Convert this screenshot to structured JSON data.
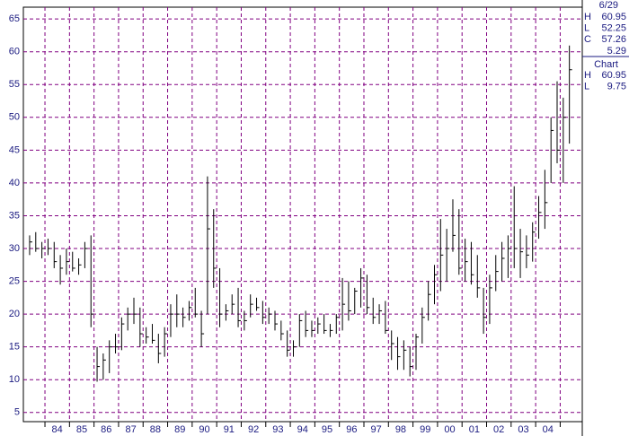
{
  "chart_data": {
    "type": "ohlc",
    "x": [
      1983.375,
      1983.625,
      1983.875,
      1984.125,
      1984.375,
      1984.625,
      1984.875,
      1985.125,
      1985.375,
      1985.625,
      1985.875,
      1986.125,
      1986.375,
      1986.625,
      1986.875,
      1987.125,
      1987.375,
      1987.625,
      1987.875,
      1988.125,
      1988.375,
      1988.625,
      1988.875,
      1989.125,
      1989.375,
      1989.625,
      1989.875,
      1990.125,
      1990.375,
      1990.625,
      1990.875,
      1991.125,
      1991.375,
      1991.625,
      1991.875,
      1992.125,
      1992.375,
      1992.625,
      1992.875,
      1993.125,
      1993.375,
      1993.625,
      1993.875,
      1994.125,
      1994.375,
      1994.625,
      1994.875,
      1995.125,
      1995.375,
      1995.625,
      1995.875,
      1996.125,
      1996.375,
      1996.625,
      1996.875,
      1997.125,
      1997.375,
      1997.625,
      1997.875,
      1998.125,
      1998.375,
      1998.625,
      1998.875,
      1999.125,
      1999.375,
      1999.625,
      1999.875,
      2000.125,
      2000.375,
      2000.625,
      2000.875,
      2001.125,
      2001.375,
      2001.625,
      2001.875,
      2002.125,
      2002.375,
      2002.625,
      2002.875,
      2003.125,
      2003.375,
      2003.625,
      2003.875,
      2004.125,
      2004.375,
      2004.625,
      2004.875,
      2005.125,
      2005.375
    ],
    "high": [
      32,
      32.5,
      31,
      31.5,
      31,
      29,
      30,
      29.5,
      28.5,
      31,
      32,
      15,
      14,
      16,
      17,
      19.5,
      21,
      22.5,
      21,
      18,
      18.5,
      17,
      18,
      21.5,
      23,
      21,
      22,
      24,
      20.5,
      41,
      36,
      27,
      21.5,
      23,
      24,
      20.5,
      23,
      22.5,
      22,
      21,
      20.5,
      19,
      17.5,
      16,
      20,
      20.5,
      19,
      19.5,
      20,
      18.5,
      20,
      25.5,
      25,
      24,
      27,
      26,
      22.5,
      21.5,
      22,
      17.5,
      16.5,
      16,
      15,
      17,
      21,
      25,
      27.5,
      34.5,
      33,
      37.5,
      36,
      31.5,
      31,
      29,
      24,
      26,
      29,
      31,
      32,
      39.5,
      33,
      32,
      34,
      38,
      42,
      50,
      55.5,
      53,
      60.95
    ],
    "low": [
      29,
      29.5,
      28.5,
      29,
      27,
      24.5,
      26,
      26.5,
      26,
      27,
      18,
      9.7,
      10,
      11,
      14,
      14.5,
      17.5,
      18.5,
      15,
      15.5,
      15.5,
      12.5,
      13.5,
      16.5,
      18,
      18,
      19,
      19.5,
      15,
      20,
      24,
      18,
      19,
      20,
      18,
      17.5,
      19.5,
      20.5,
      18.5,
      18.5,
      17.5,
      16,
      13.5,
      13.5,
      15,
      16.5,
      16.5,
      17,
      17,
      16.5,
      17,
      17.5,
      19,
      20,
      21,
      20,
      18.5,
      18.5,
      17,
      13,
      11.5,
      11.5,
      10.5,
      11.5,
      15.5,
      19,
      21.5,
      23.5,
      25,
      29.5,
      26,
      25,
      24.5,
      22.5,
      17,
      18.5,
      23.5,
      25,
      25.5,
      27,
      25.5,
      27,
      28,
      31.5,
      33,
      40,
      43,
      40,
      46
    ],
    "close": [
      31,
      30,
      30,
      30,
      28,
      27,
      28,
      27,
      27.5,
      30,
      20,
      12,
      13,
      15,
      15,
      18.5,
      20,
      20,
      17,
      16.5,
      16,
      14,
      17,
      20,
      20,
      19.5,
      21,
      20,
      17,
      33,
      27,
      20,
      20.5,
      21.5,
      19,
      19,
      21.5,
      21,
      19.5,
      20,
      18.5,
      17,
      14.5,
      15,
      19,
      17.5,
      17.5,
      18.5,
      17.5,
      17.5,
      19.5,
      21.5,
      20.5,
      23.5,
      25.5,
      21,
      19.5,
      20.5,
      17.5,
      15.5,
      13.5,
      14.5,
      12,
      16.5,
      19.5,
      23,
      26,
      29,
      30,
      32,
      27,
      28,
      26,
      24,
      19.5,
      24,
      26.5,
      28.5,
      30,
      30,
      29.5,
      29,
      32.5,
      35.5,
      37,
      48,
      45,
      50,
      57.26
    ],
    "xlim": [
      1983.12,
      2005.9
    ],
    "ylim": [
      3.6,
      66.8
    ],
    "yticks": [
      5,
      10,
      15,
      20,
      25,
      30,
      35,
      40,
      45,
      50,
      55,
      60,
      65
    ],
    "xgrid": [
      1984,
      1985,
      1986,
      1987,
      1988,
      1989,
      1990,
      1991,
      1992,
      1993,
      1994,
      1995,
      1996,
      1997,
      1998,
      1999,
      2000,
      2001,
      2002,
      2003,
      2004,
      2005
    ],
    "xticks": [
      {
        "value": 1984.5,
        "label": "84"
      },
      {
        "value": 1985.5,
        "label": "85"
      },
      {
        "value": 1986.5,
        "label": "86"
      },
      {
        "value": 1987.5,
        "label": "87"
      },
      {
        "value": 1988.5,
        "label": "88"
      },
      {
        "value": 1989.5,
        "label": "89"
      },
      {
        "value": 1990.5,
        "label": "90"
      },
      {
        "value": 1991.5,
        "label": "91"
      },
      {
        "value": 1992.5,
        "label": "92"
      },
      {
        "value": 1993.5,
        "label": "93"
      },
      {
        "value": 1994.5,
        "label": "94"
      },
      {
        "value": 1995.5,
        "label": "95"
      },
      {
        "value": 1996.5,
        "label": "96"
      },
      {
        "value": 1997.5,
        "label": "97"
      },
      {
        "value": 1998.5,
        "label": "98"
      },
      {
        "value": 1999.5,
        "label": "99"
      },
      {
        "value": 2000.5,
        "label": "00"
      },
      {
        "value": 2001.5,
        "label": "01"
      },
      {
        "value": 2002.5,
        "label": "02"
      },
      {
        "value": 2003.5,
        "label": "03"
      },
      {
        "value": 2004.5,
        "label": "04"
      }
    ],
    "grid": true,
    "grid_color": "#800080",
    "color": "#000000",
    "panel": {
      "date": "6/29",
      "rows": [
        {
          "label": "H",
          "value": 60.95
        },
        {
          "label": "L",
          "value": 52.25
        },
        {
          "label": "C",
          "value": 57.26
        }
      ],
      "change": 5.29,
      "range_title": "Chart",
      "range_rows": [
        {
          "label": "H",
          "value": 60.95
        },
        {
          "label": "L",
          "value": 9.75
        }
      ]
    }
  }
}
